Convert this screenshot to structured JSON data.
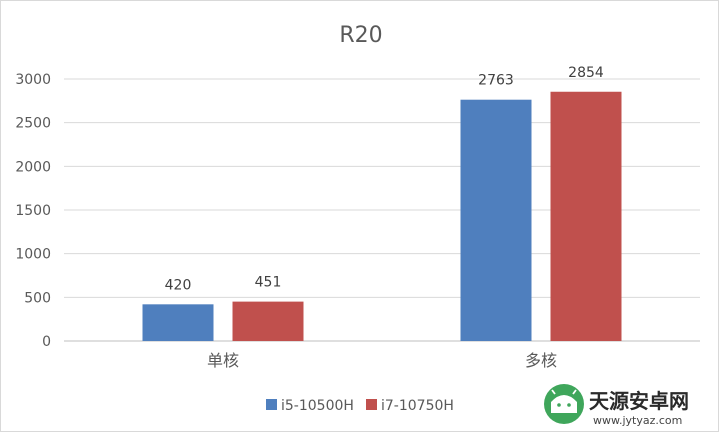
{
  "chart_data": {
    "type": "bar",
    "title": "R20",
    "categories": [
      "单核",
      "多核"
    ],
    "series": [
      {
        "name": "i5-10500H",
        "values": [
          420,
          2763
        ],
        "color": "#4f7fbe"
      },
      {
        "name": "i7-10750H",
        "values": [
          451,
          2854
        ],
        "color": "#c0504d"
      }
    ],
    "ylim": [
      0,
      3000
    ],
    "yticks": [
      "0",
      "500",
      "1000",
      "1500",
      "2000",
      "2500",
      "3000"
    ],
    "grid": true,
    "legend": "bottom"
  },
  "watermark": {
    "name": "天源安卓网",
    "url": "www.jytyaz.com",
    "icon": "android-icon"
  }
}
